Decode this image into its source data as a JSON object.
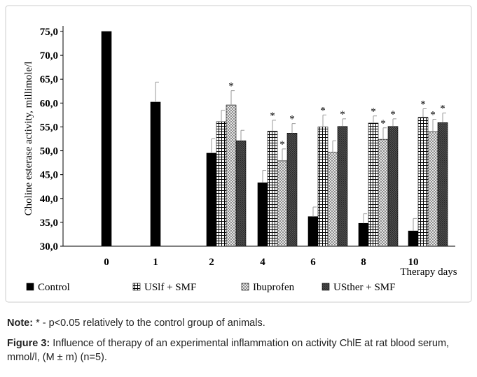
{
  "chart_data": {
    "type": "bar",
    "categories": [
      "0",
      "1",
      "2",
      "4",
      "6",
      "8",
      "10"
    ],
    "x_label": "Therapy days",
    "y_label": "Choline esterase activity, millimole/l",
    "ylim": [
      30,
      75
    ],
    "yticks": [
      {
        "value": 30,
        "label": "30,0"
      },
      {
        "value": 35,
        "label": "35,0"
      },
      {
        "value": 40,
        "label": "40,0"
      },
      {
        "value": 45,
        "label": "45,0"
      },
      {
        "value": 50,
        "label": "50,0"
      },
      {
        "value": 55,
        "label": "55,0"
      },
      {
        "value": 60,
        "label": "60,0"
      },
      {
        "value": 65,
        "label": "65,0"
      },
      {
        "value": 70,
        "label": "70,0"
      },
      {
        "value": 75,
        "label": "75,0"
      }
    ],
    "series": [
      {
        "name": "Control",
        "color": "#000000",
        "pattern": "solid",
        "values": [
          75,
          60.2,
          49.5,
          43.3,
          36.2,
          34.8,
          33.2
        ],
        "errors": [
          null,
          4.2,
          3,
          2.6,
          2,
          2,
          2.6
        ],
        "labels": [
          null,
          null,
          null,
          null,
          null,
          null,
          null
        ]
      },
      {
        "name": "USlf + SMF",
        "color": "#000000",
        "pattern": "grid",
        "values": [
          null,
          null,
          56.1,
          54.1,
          55,
          55.8,
          57
        ],
        "errors": [
          null,
          null,
          2.4,
          2.3,
          2.5,
          1.5,
          1.8
        ],
        "labels": [
          null,
          null,
          null,
          "*",
          "*",
          "*",
          "*"
        ]
      },
      {
        "name": "Ibuprofen",
        "color": "#555555",
        "pattern": "hatch",
        "values": [
          null,
          null,
          59.6,
          47.9,
          49.7,
          52.4,
          54
        ],
        "errors": [
          null,
          null,
          3,
          2.5,
          2.4,
          2.4,
          2.6
        ],
        "labels": [
          null,
          null,
          "*",
          "*",
          null,
          "*",
          "*"
        ]
      },
      {
        "name": "USther + SMF",
        "color": "#333333",
        "pattern": "dense",
        "values": [
          null,
          null,
          52.1,
          53.7,
          55.1,
          55.1,
          55.9
        ],
        "errors": [
          null,
          null,
          2.2,
          2,
          1.6,
          1.6,
          2
        ],
        "labels": [
          null,
          null,
          null,
          "*",
          "*",
          "*",
          "*"
        ]
      }
    ]
  },
  "note": {
    "label": "Note:",
    "text": " * - p<0.05 relatively to the control group of animals."
  },
  "figure": {
    "label": "Figure 3:",
    "text": " Influence of therapy of an experimental inflammation on activity ChlE at rat blood serum, mmol/l, (M ± m) (n=5)."
  }
}
